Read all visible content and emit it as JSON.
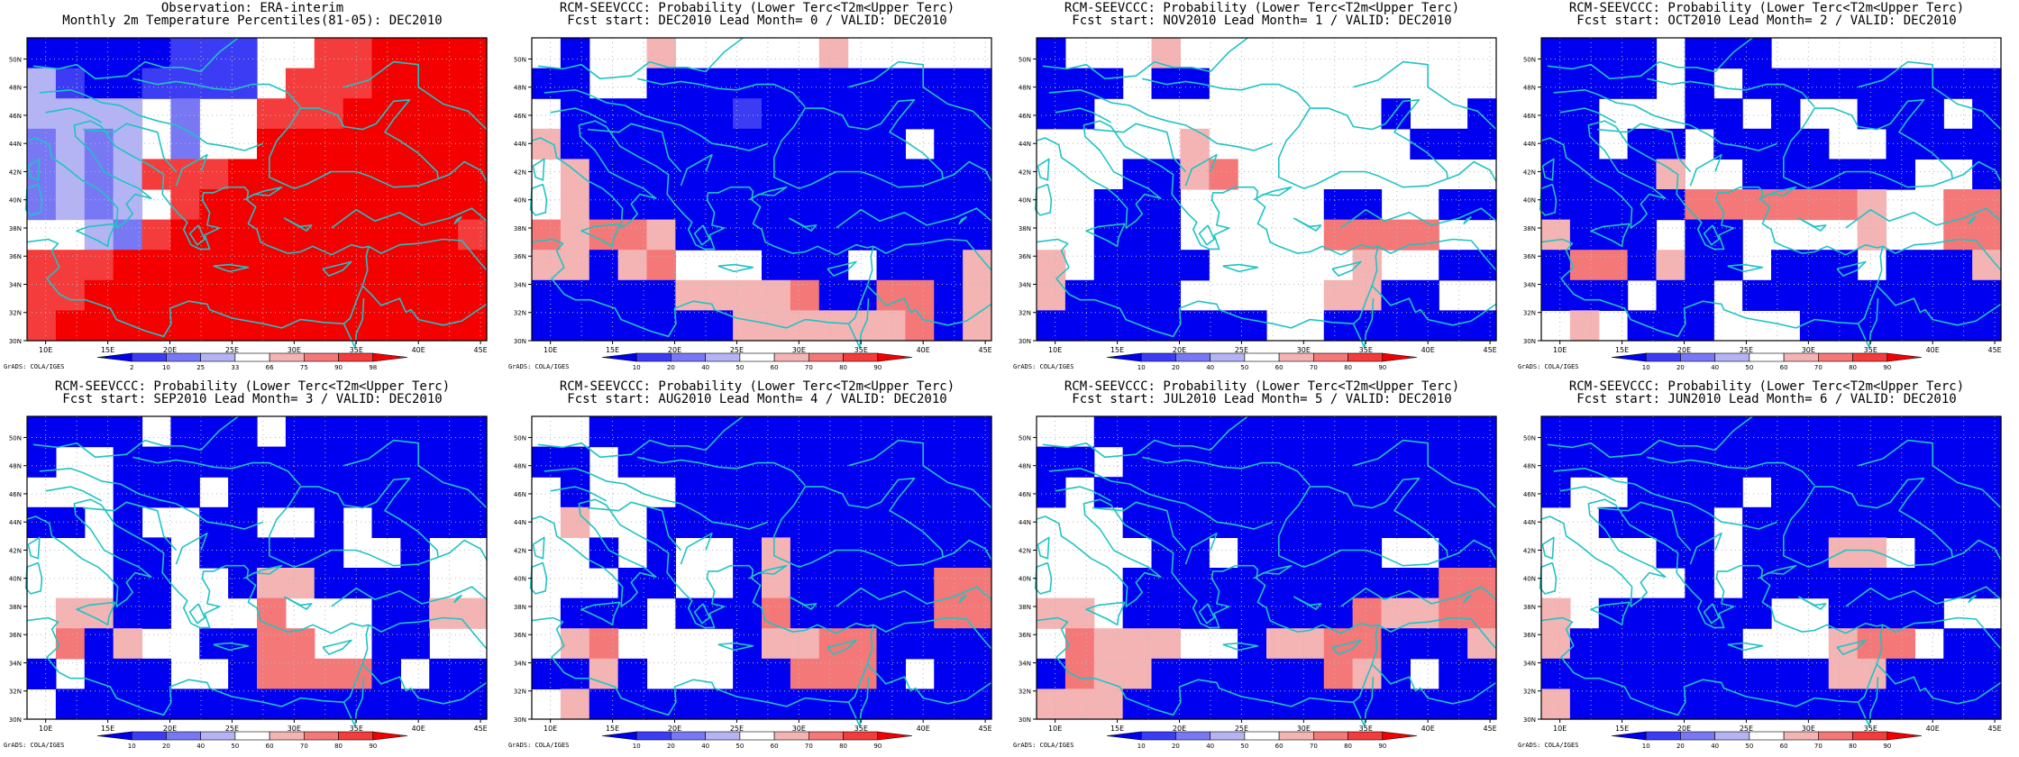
{
  "colors": {
    "land_outline": "#1fc3c3",
    "frame": "#000000",
    "grid_dots": "#b8b8b8",
    "blue_scale": [
      "#0000f0",
      "#3c3cf5",
      "#7878f5",
      "#b4b4f5"
    ],
    "red_scale": [
      "#f5b4b4",
      "#f57878",
      "#f53c3c",
      "#f50000"
    ]
  },
  "axis": {
    "lon_ticks": [
      "10E",
      "15E",
      "20E",
      "25E",
      "30E",
      "35E",
      "40E",
      "45E"
    ],
    "lat_ticks": [
      "30N",
      "32N",
      "34N",
      "36N",
      "38N",
      "40N",
      "42N",
      "44N",
      "46N",
      "48N",
      "50N"
    ]
  },
  "obs_legend": [
    "2",
    "10",
    "25",
    "33",
    "66",
    "75",
    "90",
    "98"
  ],
  "prob_legend": [
    "10",
    "20",
    "40",
    "50",
    "60",
    "70",
    "80",
    "90"
  ],
  "credit": "GrADS: COLA/IGES",
  "panels": [
    {
      "title_line1": "Observation: ERA-interim",
      "title_line2": "Monthly 2m Temperature Percentiles(81-05): DEC2010",
      "legend": "obs",
      "grid": [
        "BBBBBbbb00RRSSSS",
        "dbBBbbbb0RRRSSSS",
        "dddd0c00RRRSSSSS",
        "cdcd0c00SSSSSSSS",
        "cdcdRRRSSSSSSSSS",
        "cdcd0RSSSSSSSSSS",
        "00dcRSSSSSSSSSSR",
        "RRRSSSSSSSSSSSSS",
        "RRSSSSSSSSSSSSSS",
        "RSSSSSSSSSSSSSSS"
      ]
    },
    {
      "title_line1": "RCM-SEEVCCC: Probability (Lower Terc<T2m<Upper Terc)",
      "title_line2": "Fcst start: DEC2010  Lead Month= 0 / VALID: DEC2010",
      "legend": "prob",
      "grid": [
        "0B00s00000s00000",
        "BB00BBBBBBBBBBBB",
        "0BBBBBBbBBBBBBBB",
        "sBBBBBBBBBBBB0BB",
        "0sBBBBBBBBBBBBBB",
        "0sBBBBBBBBBBBBBB",
        "rsrrsBBBBBBBBBBB",
        "ssBsr000BBB0BBBs",
        "BBBBBssssrBBrrBs",
        "BBBBBBBssssssrBs"
      ]
    },
    {
      "title_line1": "RCM-SEEVCCC: Probability (Lower Terc<T2m<Upper Terc)",
      "title_line2": "Fcst start: NOV2010  Lead Month= 1 / VALID: DEC2010",
      "legend": "prob",
      "grid": [
        "B000s00000000000",
        "BBB0BB0000000000",
        "BB0000000000B00B",
        "00000s0000000BBB",
        "000BBsr000000000",
        "00BBB00000BB00BB",
        "00BBB00000rrrr00",
        "s0BBBB00000s00BB",
        "sBBBB00000ssBB00",
        "BBBBBBBB00BBBBBB"
      ]
    },
    {
      "title_line1": "RCM-SEEVCCC: Probability (Lower Terc<T2m<Upper Terc)",
      "title_line2": "Fcst start: OCT2010  Lead Month= 2 / VALID: DEC2010",
      "legend": "prob",
      "grid": [
        "BBBB0BBB00000000",
        "BBBB0B0BBBBBBBBB",
        "BB000BB0B00BBB0B",
        "BB0BB0BBBB00BBBB",
        "BBBBs00BBBBBB00B",
        "BBBBBrrrrrrs00rr",
        "sBBB0BB0000s00rr",
        "BrrBsBB0BBB0BBBs",
        "BBB0BB0BBBBBBBBB",
        "0s0BBB000BBBBBBB"
      ]
    },
    {
      "title_line1": "RCM-SEEVCCC: Probability (Lower Terc<T2m<Upper Terc)",
      "title_line2": "Fcst start: SEP2010  Lead Month= 3 / VALID: DEC2010",
      "legend": "prob",
      "grid": [
        "BBBB0BBB0BBBBBBB",
        "B00BBBBBBBBBBBBB",
        "000BBB0BBBBBBBBB",
        "BB0B00BB00B0BBBB",
        "000BB0BBBBB00B00",
        "000BB00BssBBBB00",
        "0ssBB000r000BBss",
        "0rBs00BBrr00BB00",
        "B0BBB00BrrrrB0BB",
        "0BBBBBBBBBBBBBBB"
      ]
    },
    {
      "title_line1": "RCM-SEEVCCC: Probability (Lower Terc<T2m<Upper Terc)",
      "title_line2": "Fcst start: AUG2010  Lead Month= 4 / VALID: DEC2010",
      "legend": "prob",
      "grid": [
        "00BBBBBBBBBBBBBB",
        "BB0BBBBBBBBBBBBB",
        "0B000BBBBBBBBBBB",
        "0s00BBBBBBBBBBBB",
        "00B0B00BsBBBBBBB",
        "000BB00BsBBBBBrr",
        "0BBB0BBBrBBBBBrr",
        "0sr0000BssrrBBBB",
        "BBsB000BBrrrB0BB",
        "0sBBBBBBBBBBBBBB"
      ]
    },
    {
      "title_line1": "RCM-SEEVCCC: Probability (Lower Terc<T2m<Upper Terc)",
      "title_line2": "Fcst start: JUL2010  Lead Month= 5 / VALID: DEC2010",
      "legend": "prob",
      "grid": [
        "00BBBBBBBBBBBBBB",
        "BB0BBBBBBBBBBBBB",
        "B0BBBBBBBBBBBBBB",
        "000BBBBBBBBBBBBB",
        "0000BB0BBBBB00BB",
        "000BBBBBBBBBBBrr",
        "ss0BBBBBBBBrssrr",
        "0rsss00BssrrBBBs",
        "BrssBBBBBBrsB0BB",
        "sssBBBBBBBBBBBBB"
      ]
    },
    {
      "title_line1": "RCM-SEEVCCC: Probability (Lower Terc<T2m<Upper Terc)",
      "title_line2": "Fcst start: JUN2010  Lead Month= 6 / VALID: DEC2010",
      "legend": "prob",
      "grid": [
        "BBBBBBBBBBBBBBBB",
        "BBBBBBBBBBBBBBBB",
        "B00BBBB0BBBBBBBB",
        "00BBBB0BBBBBBBBB",
        "0000BB0BBBss0BBB",
        "00000B0BBBBBBBBB",
        "s0BBBBBB00BBBB00",
        "sBBBBBB000srr0BB",
        "BBBBBBBBBBssBBBB",
        "sBBBBBBBBBBBBBBB"
      ]
    }
  ]
}
